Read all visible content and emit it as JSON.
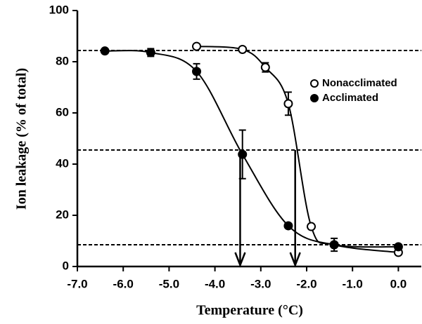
{
  "chart_data": {
    "type": "scatter",
    "xlabel": "Temperature (°C)",
    "ylabel": "Ion leakage (% of total)",
    "xlim": [
      -7,
      0.5
    ],
    "ylim": [
      0,
      100
    ],
    "xticks": [
      {
        "value": -7,
        "label": "-7.0"
      },
      {
        "value": -6,
        "label": "-6.0"
      },
      {
        "value": -5,
        "label": "-5.0"
      },
      {
        "value": -4,
        "label": "-4.0"
      },
      {
        "value": -3,
        "label": "-3.0"
      },
      {
        "value": -2,
        "label": "-2.0"
      },
      {
        "value": -1,
        "label": "-1.0"
      },
      {
        "value": 0,
        "label": "0.0"
      }
    ],
    "yticks": [
      0,
      20,
      40,
      60,
      80,
      100
    ],
    "series": [
      {
        "name": "Nonacclimated",
        "color": "#000000",
        "filled": false,
        "x": [
          -4.4,
          -3.4,
          -2.9,
          -2.4,
          -1.9,
          -1.4,
          0
        ],
        "values": [
          86,
          84.8,
          77.8,
          63.6,
          15.6,
          8.5,
          5.5
        ],
        "errors": [
          null,
          null,
          1.8,
          4.5,
          null,
          null,
          null
        ]
      },
      {
        "name": "Acclimated",
        "color": "#000000",
        "filled": true,
        "x": [
          -6.4,
          -5.4,
          -4.4,
          -3.4,
          -2.4,
          -1.4,
          0
        ],
        "values": [
          84.2,
          83.6,
          76.2,
          43.8,
          15.9,
          8.5,
          7.7
        ],
        "errors": [
          null,
          1.5,
          3,
          9.5,
          null,
          2.5,
          null
        ]
      }
    ],
    "hlines": [
      84.4,
      45.5,
      8.5
    ],
    "arrows_x": [
      -3.45,
      -2.25
    ]
  }
}
